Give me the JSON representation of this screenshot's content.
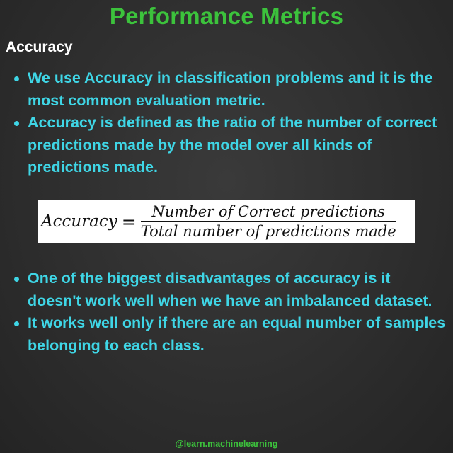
{
  "title": "Performance Metrics",
  "section_heading": "Accuracy",
  "bullets_top": [
    "We use Accuracy in classification problems and it is the most common evaluation metric.",
    "Accuracy is defined as the ratio of the number of correct predictions made by the model over all kinds of predictions made."
  ],
  "formula": {
    "lhs": "Accuracy",
    "equals": "=",
    "numerator": "Number of Correct predictions",
    "denominator": "Total number of predictions made"
  },
  "bullets_bottom": [
    "One of the biggest disadvantages of accuracy is it doesn't work well when we have an imbalanced dataset.",
    "It works well only if there are an equal number of samples belonging to each class."
  ],
  "footer": "@learn.machinelearning",
  "colors": {
    "title": "#3cc23c",
    "bullet_text": "#3fd6e6",
    "background": "#2e2e2e"
  }
}
